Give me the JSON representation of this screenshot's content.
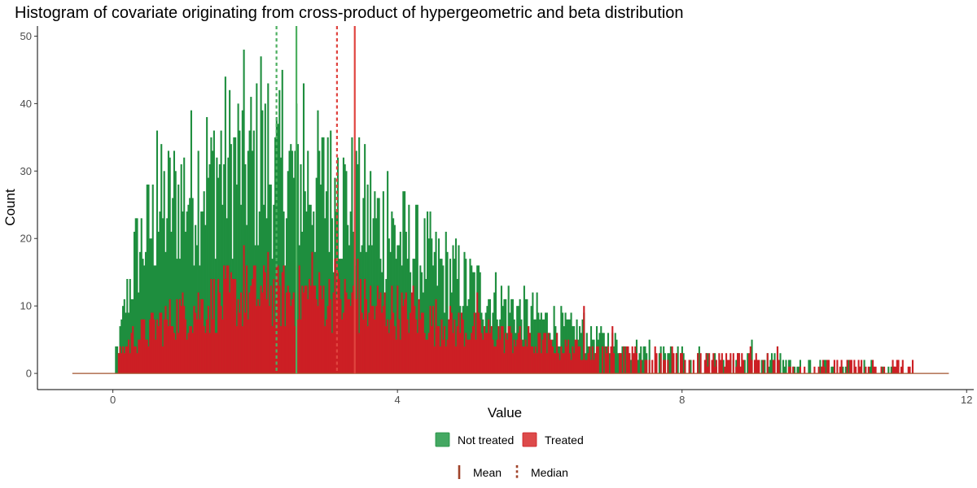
{
  "chart_data": {
    "type": "histogram",
    "title": "Histogram of covariate originating from cross-product of hypergeometric and beta distribution",
    "xlabel": "Value",
    "ylabel": "Count",
    "xlim": [
      -1.06,
      12.1
    ],
    "ylim": [
      -2.4,
      51.5
    ],
    "x_ticks": [
      0,
      4,
      8,
      12
    ],
    "x_tick_labels": [
      "0",
      "4",
      "8",
      "12"
    ],
    "y_ticks": [
      0,
      10,
      20,
      30,
      40,
      50
    ],
    "y_tick_labels": [
      "0",
      "10",
      "20",
      "30",
      "40",
      "50"
    ],
    "grid": false,
    "legend_position": "bottom",
    "bin_range": [
      -0.57,
      11.75
    ],
    "bin_width": 0.02,
    "series": [
      {
        "name": "Not treated",
        "color": "#1e8e3e",
        "envelope": [
          [
            0.0,
            0
          ],
          [
            0.02,
            2
          ],
          [
            0.1,
            6
          ],
          [
            0.2,
            12
          ],
          [
            0.3,
            17
          ],
          [
            0.4,
            19
          ],
          [
            0.5,
            21
          ],
          [
            0.6,
            23
          ],
          [
            0.8,
            25
          ],
          [
            1.0,
            27
          ],
          [
            1.2,
            29
          ],
          [
            1.5,
            31
          ],
          [
            1.8,
            31
          ],
          [
            2.0,
            31
          ],
          [
            2.2,
            30
          ],
          [
            2.4,
            29
          ],
          [
            2.6,
            29
          ],
          [
            2.8,
            28
          ],
          [
            3.0,
            27
          ],
          [
            3.2,
            26
          ],
          [
            3.5,
            24
          ],
          [
            4.0,
            20
          ],
          [
            4.5,
            16
          ],
          [
            5.0,
            13
          ],
          [
            5.5,
            10
          ],
          [
            6.0,
            8
          ],
          [
            6.5,
            6
          ],
          [
            7.0,
            4.5
          ],
          [
            7.5,
            3
          ],
          [
            8.0,
            2
          ],
          [
            8.5,
            1.3
          ],
          [
            9.0,
            1
          ],
          [
            9.5,
            0.6
          ],
          [
            10.0,
            0.3
          ],
          [
            10.5,
            0.2
          ],
          [
            11.0,
            0
          ],
          [
            11.75,
            0
          ]
        ],
        "spikes": [
          [
            0.62,
            36
          ],
          [
            1.82,
            48
          ],
          [
            2.06,
            47
          ],
          [
            2.38,
            45
          ],
          [
            2.16,
            43
          ],
          [
            2.66,
            43
          ],
          [
            1.38,
            35
          ],
          [
            3.0,
            35
          ],
          [
            3.14,
            32
          ],
          [
            3.44,
            31
          ],
          [
            3.84,
            30
          ],
          [
            6.7,
            7
          ],
          [
            8.96,
            5
          ],
          [
            9.32,
            4
          ],
          [
            6.6,
            9
          ]
        ]
      },
      {
        "name": "Treated",
        "color": "#cc1f24",
        "envelope": [
          [
            0.0,
            0
          ],
          [
            0.02,
            1
          ],
          [
            0.1,
            3
          ],
          [
            0.2,
            4.5
          ],
          [
            0.4,
            6
          ],
          [
            0.6,
            7
          ],
          [
            0.8,
            8
          ],
          [
            1.0,
            9
          ],
          [
            1.3,
            10
          ],
          [
            1.6,
            11
          ],
          [
            2.0,
            11.5
          ],
          [
            2.4,
            11.5
          ],
          [
            2.8,
            11.5
          ],
          [
            3.0,
            11
          ],
          [
            3.4,
            10.5
          ],
          [
            3.8,
            9.5
          ],
          [
            4.2,
            8.5
          ],
          [
            4.6,
            7.5
          ],
          [
            5.0,
            6.5
          ],
          [
            5.5,
            5.5
          ],
          [
            6.0,
            4.5
          ],
          [
            6.5,
            3.5
          ],
          [
            7.0,
            2.7
          ],
          [
            7.5,
            2
          ],
          [
            8.0,
            1.5
          ],
          [
            8.5,
            1.2
          ],
          [
            9.0,
            1
          ],
          [
            9.5,
            0.8
          ],
          [
            10.0,
            0.6
          ],
          [
            10.5,
            0.4
          ],
          [
            11.0,
            0.3
          ],
          [
            11.3,
            0
          ],
          [
            11.75,
            0
          ]
        ],
        "spikes": [
          [
            1.82,
            19
          ],
          [
            2.16,
            18
          ],
          [
            2.8,
            18
          ],
          [
            3.1,
            17
          ],
          [
            3.44,
            17
          ],
          [
            4.2,
            13
          ],
          [
            5.1,
            12
          ],
          [
            6.6,
            10
          ],
          [
            7.0,
            7
          ],
          [
            8.46,
            2
          ],
          [
            8.94,
            4
          ],
          [
            9.32,
            4
          ]
        ]
      }
    ],
    "reference_lines": [
      {
        "group": "Not treated",
        "stat": "Mean",
        "x": 2.58,
        "color": "#4daf60",
        "style": "solid"
      },
      {
        "group": "Not treated",
        "stat": "Median",
        "x": 2.3,
        "color": "#4daf60",
        "style": "dashed"
      },
      {
        "group": "Treated",
        "stat": "Mean",
        "x": 3.4,
        "color": "#e0443f",
        "style": "solid"
      },
      {
        "group": "Treated",
        "stat": "Median",
        "x": 3.15,
        "color": "#e0443f",
        "style": "dashed"
      }
    ],
    "legend": {
      "fill": [
        {
          "label": "Not treated",
          "color": "#44a862"
        },
        {
          "label": "Treated",
          "color": "#dd4a4a"
        }
      ],
      "linetype": [
        {
          "label": "Mean",
          "style": "solid",
          "color": "#a0432a"
        },
        {
          "label": "Median",
          "style": "dashed",
          "color": "#a0432a"
        }
      ]
    }
  }
}
